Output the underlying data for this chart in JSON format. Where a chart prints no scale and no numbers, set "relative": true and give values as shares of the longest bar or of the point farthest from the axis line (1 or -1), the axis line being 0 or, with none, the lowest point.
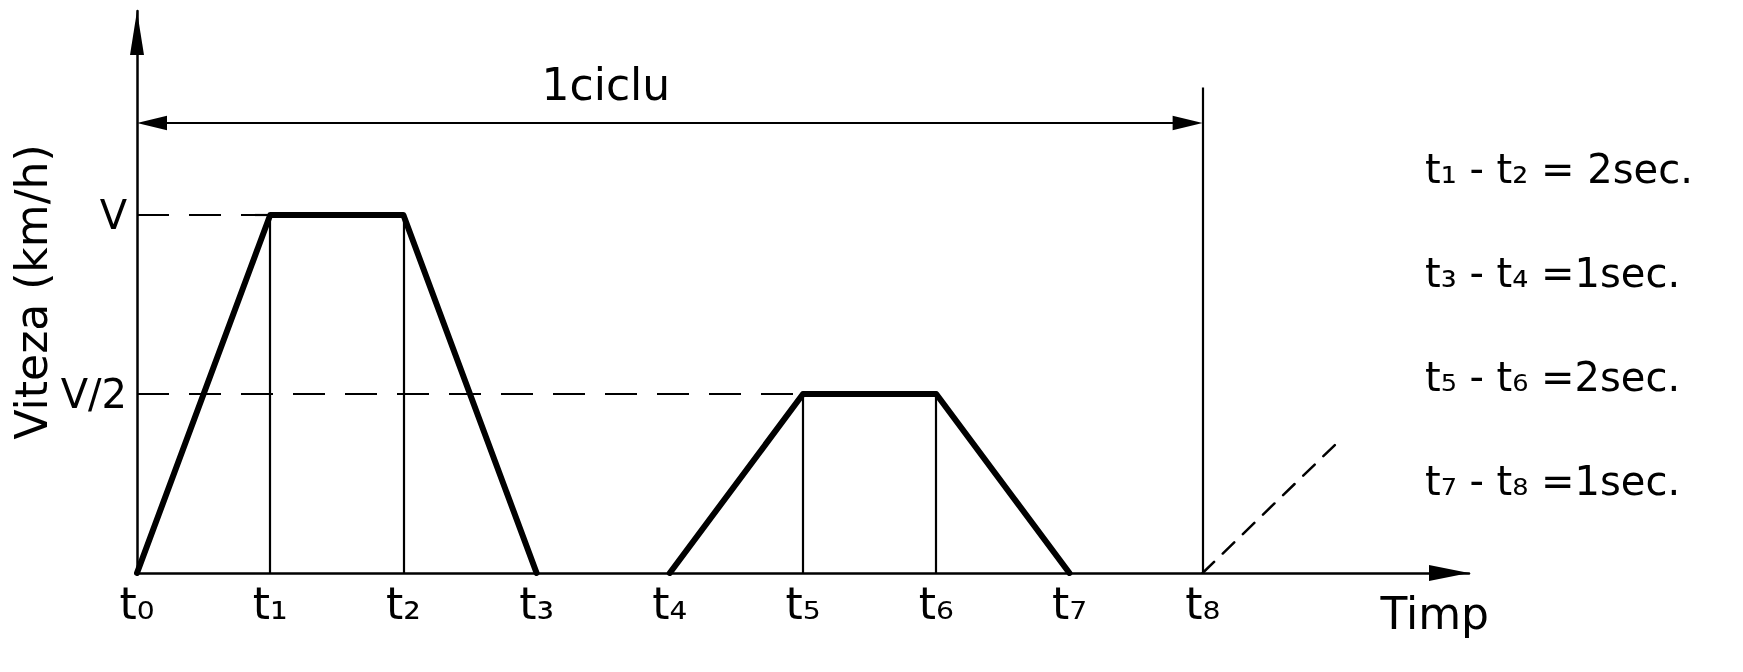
{
  "chart_data": {
    "type": "line",
    "relative": true,
    "ylabel": "Viteza (km/h)",
    "xlabel": "Timp",
    "annotations": [
      "1ciclu",
      "t₁ - t₂ = 2sec.",
      "t₃ - t₄ =1sec.",
      "t₅ - t₆ =2sec.",
      "t₇ - t₈ =1sec."
    ],
    "categories": [
      "t₀",
      "t₁",
      "t₂",
      "t₃",
      "t₄",
      "t₅",
      "t₆",
      "t₇",
      "t₈",
      null,
      null
    ],
    "series": [
      {
        "color": "#000000",
        "values": [
          0,
          1,
          1,
          0,
          null,
          null,
          null,
          null,
          null,
          null,
          null
        ]
      },
      {
        "color": "#000000",
        "values": [
          null,
          null,
          null,
          null,
          0,
          0.5,
          0.5,
          0,
          null,
          null,
          null
        ]
      },
      {
        "color": "#000000",
        "values": [
          null,
          null,
          null,
          null,
          null,
          null,
          null,
          null,
          0,
          0.36,
          null
        ],
        "line_style": "dashed"
      }
    ],
    "ref_lines": [
      {
        "axis": "y",
        "value": 1,
        "label": "V",
        "line_style": "dashed"
      },
      {
        "axis": "y",
        "value": 0.5,
        "label": "V/2",
        "line_style": "dashed"
      },
      {
        "axis": "x",
        "value": "t₁"
      },
      {
        "axis": "x",
        "value": "t₂"
      },
      {
        "axis": "x",
        "value": "t₅"
      },
      {
        "axis": "x",
        "value": "t₆"
      },
      {
        "axis": "x",
        "value": "t₈"
      }
    ],
    "marker": "none"
  }
}
